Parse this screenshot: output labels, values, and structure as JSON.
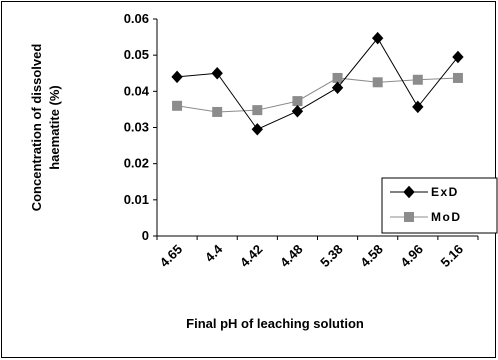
{
  "chart_data": {
    "type": "line",
    "title": "",
    "xlabel": "Final pH of leaching solution",
    "ylabel": "Concentration of dissolved haematite (%)",
    "ylabel_lines": [
      "Concentration of dissolved",
      "haematite (%)"
    ],
    "categories": [
      "4.65",
      "4.4",
      "4.42",
      "4.48",
      "5.38",
      "4.58",
      "4.96",
      "5.16"
    ],
    "ylim": [
      0,
      0.06
    ],
    "yticks": [
      0,
      0.01,
      0.02,
      0.03,
      0.04,
      0.05,
      0.06
    ],
    "ytick_labels": [
      "0",
      "0.01",
      "0.02",
      "0.03",
      "0.04",
      "0.05",
      "0.06"
    ],
    "grid": false,
    "legend_position": "right",
    "series": [
      {
        "name": "ExD",
        "marker": "diamond",
        "color": "#000000",
        "values": [
          0.044,
          0.045,
          0.0295,
          0.0345,
          0.041,
          0.0547,
          0.0357,
          0.0495
        ]
      },
      {
        "name": "MoD",
        "marker": "square",
        "color": "#8c8c8c",
        "values": [
          0.036,
          0.0343,
          0.0348,
          0.0373,
          0.0437,
          0.0425,
          0.0432,
          0.0437
        ]
      }
    ]
  }
}
